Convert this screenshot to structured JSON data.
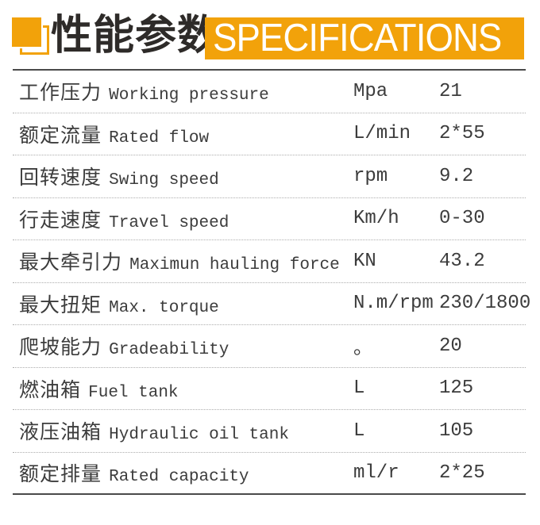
{
  "header": {
    "title_cn": "性能参数",
    "banner_en": "SPECIFICATIONS",
    "accent_color": "#F2A20A",
    "icon": "layered-squares-icon"
  },
  "table": {
    "rows": [
      {
        "label_cn": "工作压力",
        "label_en": "Working pressure",
        "unit": "Mpa",
        "value": "21"
      },
      {
        "label_cn": "额定流量",
        "label_en": "Rated flow",
        "unit": "L/min",
        "value": "2*55"
      },
      {
        "label_cn": "回转速度",
        "label_en": "Swing speed",
        "unit": "rpm",
        "value": "9.2"
      },
      {
        "label_cn": "行走速度",
        "label_en": "Travel speed",
        "unit": "Km/h",
        "value": "0-30"
      },
      {
        "label_cn": "最大牵引力",
        "label_en": "Maximun hauling force",
        "unit": "KN",
        "value": "43.2"
      },
      {
        "label_cn": "最大扭矩",
        "label_en": "Max. torque",
        "unit": "N.m/rpm",
        "value": "230/1800"
      },
      {
        "label_cn": "爬坡能力",
        "label_en": "Gradeability",
        "unit": "。",
        "value": "20"
      },
      {
        "label_cn": "燃油箱",
        "label_en": "Fuel tank",
        "unit": "L",
        "value": "125"
      },
      {
        "label_cn": "液压油箱",
        "label_en": "Hydraulic oil tank",
        "unit": "L",
        "value": "105"
      },
      {
        "label_cn": "额定排量",
        "label_en": "Rated capacity",
        "unit": "ml/r",
        "value": "2*25"
      }
    ]
  }
}
